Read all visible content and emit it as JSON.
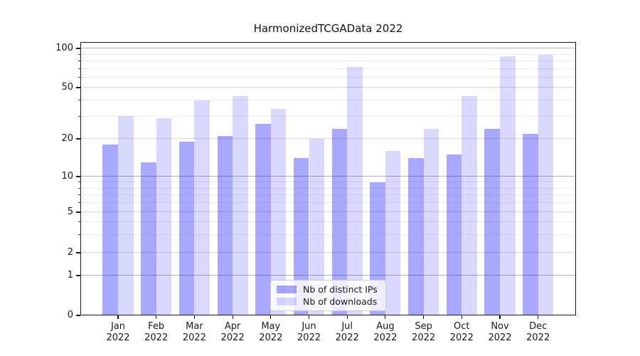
{
  "title": "HarmonizedTCGAData 2022",
  "legend": {
    "position": "lower-center-inside",
    "items": [
      {
        "label": "Nb of distinct IPs",
        "swatch": "translucent-blue-dark",
        "color": "rgba(0,0,255,0.34)"
      },
      {
        "label": "Nb of downloads",
        "swatch": "translucent-blue-light",
        "color": "rgba(0,0,255,0.15)"
      }
    ]
  },
  "axes": {
    "y_tick_labels": [
      "0",
      "1",
      "2",
      "5",
      "10",
      "20",
      "50",
      "100"
    ],
    "x_months": [
      "Jan",
      "Feb",
      "Mar",
      "Apr",
      "May",
      "Jun",
      "Jul",
      "Aug",
      "Sep",
      "Oct",
      "Nov",
      "Dec"
    ],
    "x_year_line": "2022"
  },
  "chart_data": {
    "type": "bar",
    "title": "HarmonizedTCGAData 2022",
    "categories": [
      "Jan 2022",
      "Feb 2022",
      "Mar 2022",
      "Apr 2022",
      "May 2022",
      "Jun 2022",
      "Jul 2022",
      "Aug 2022",
      "Sep 2022",
      "Oct 2022",
      "Nov 2022",
      "Dec 2022"
    ],
    "series": [
      {
        "name": "Nb of distinct IPs",
        "color": "rgba(0,0,255,0.34)",
        "values": [
          18,
          13,
          19,
          21,
          26,
          14,
          24,
          9,
          14,
          15,
          24,
          22
        ]
      },
      {
        "name": "Nb of downloads",
        "color": "rgba(0,0,255,0.15)",
        "values": [
          30,
          29,
          40,
          43,
          34,
          20,
          72,
          16,
          24,
          43,
          87,
          89
        ]
      }
    ],
    "yscale": "asinh-log (linear 0-1, logarithmic above)",
    "y_ticks": [
      0,
      1,
      2,
      5,
      10,
      20,
      50,
      100
    ],
    "y_minor_ticks": [
      3,
      4,
      6,
      7,
      8,
      9,
      30,
      40,
      60,
      70,
      80,
      90
    ],
    "ylim": [
      0,
      110
    ],
    "grid": "horizontal major+minor, light gray",
    "legend_position": "lower center inside plot"
  }
}
